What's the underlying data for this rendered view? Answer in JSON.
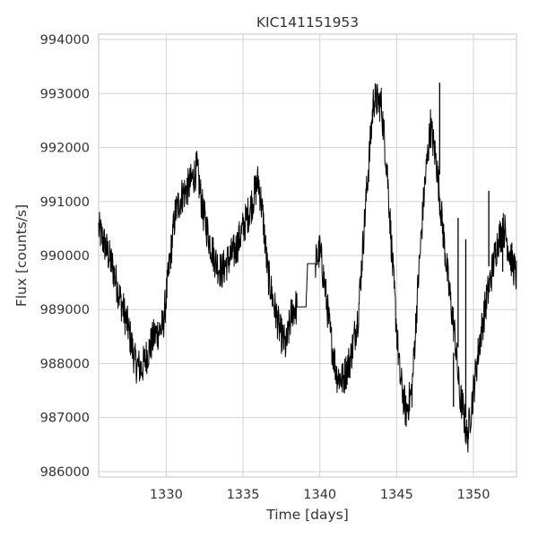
{
  "chart_data": {
    "type": "line",
    "title": "KIC141151953",
    "xlabel": "Time [days]",
    "ylabel": "Flux [counts/s]",
    "xlim": [
      1325.6,
      1352.8
    ],
    "ylim": [
      985900,
      994100
    ],
    "grid": true,
    "x_ticks": [
      1330,
      1335,
      1340,
      1345,
      1350
    ],
    "y_ticks": [
      986000,
      987000,
      988000,
      989000,
      990000,
      991000,
      992000,
      993000,
      994000
    ],
    "x_tick_labels": [
      "1330",
      "1335",
      "1340",
      "1345",
      "1350"
    ],
    "y_tick_labels": [
      "986000",
      "987000",
      "988000",
      "989000",
      "990000",
      "991000",
      "992000",
      "993000",
      "994000"
    ],
    "series": [
      {
        "color": "#000000",
        "x": [
          1325.6,
          1326.0,
          1326.5,
          1327.0,
          1327.5,
          1328.0,
          1328.4,
          1328.8,
          1329.2,
          1329.5,
          1329.8,
          1330.2,
          1330.6,
          1331.0,
          1331.5,
          1332.0,
          1332.4,
          1332.8,
          1333.2,
          1333.6,
          1334.0,
          1334.5,
          1335.0,
          1335.5,
          1336.0,
          1336.3,
          1336.6,
          1337.0,
          1337.4,
          1337.8,
          1338.2,
          1338.5,
          1338.6,
          1339.1,
          1339.2,
          1339.7,
          1340.0,
          1340.3,
          1340.7,
          1341.1,
          1341.5,
          1342.0,
          1342.5,
          1343.0,
          1343.5,
          1344.0,
          1344.4,
          1344.8,
          1345.2,
          1345.6,
          1346.0,
          1346.4,
          1346.8,
          1347.2,
          1347.6,
          1348.0,
          1348.4,
          1348.8,
          1349.1,
          1349.3,
          1349.6,
          1350.0,
          1350.4,
          1350.8,
          1351.2,
          1351.6,
          1352.0,
          1352.4,
          1352.8
        ],
        "y": [
          990500,
          990200,
          989800,
          989200,
          988700,
          988000,
          987900,
          988200,
          988500,
          988600,
          988700,
          989800,
          990800,
          991100,
          991300,
          991600,
          990800,
          990300,
          989900,
          989700,
          989900,
          990100,
          990500,
          990900,
          991400,
          990700,
          989700,
          989100,
          988600,
          988300,
          989000,
          989050,
          989050,
          989050,
          989850,
          989850,
          990100,
          989500,
          988500,
          987800,
          987700,
          988100,
          988900,
          991000,
          992900,
          992800,
          991500,
          989500,
          987800,
          987100,
          987500,
          989500,
          991200,
          992400,
          991700,
          990500,
          989400,
          988500,
          987400,
          987200,
          986600,
          987500,
          988400,
          989100,
          989700,
          990300,
          990500,
          990000,
          989600
        ]
      }
    ],
    "spikes": [
      {
        "x": 1347.8,
        "y_from": 991500,
        "y_to": 993200
      },
      {
        "x": 1348.7,
        "y_from": 988200,
        "y_to": 987200
      },
      {
        "x": 1349.0,
        "y_from": 988300,
        "y_to": 990700
      },
      {
        "x": 1349.5,
        "y_from": 987000,
        "y_to": 990300
      },
      {
        "x": 1351.0,
        "y_from": 989800,
        "y_to": 991200
      },
      {
        "x": 1351.9,
        "y_from": 989700,
        "y_to": 990700
      }
    ]
  }
}
